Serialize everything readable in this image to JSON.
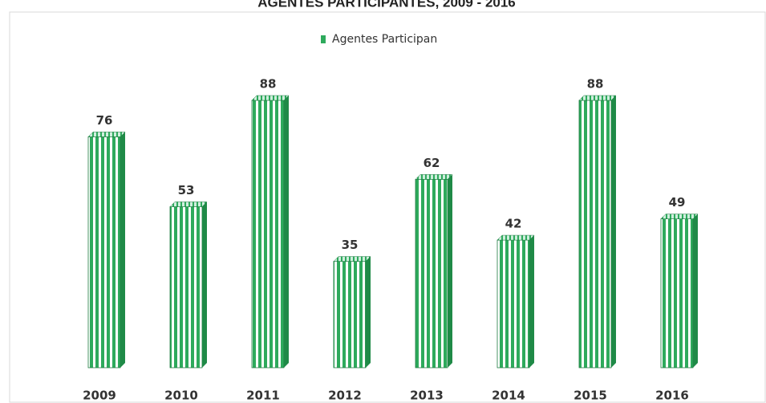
{
  "chart_data": {
    "type": "bar",
    "title": "AGENTES PARTICIPANTES, 2009 - 2016",
    "categories": [
      "2009",
      "2010",
      "2011",
      "2012",
      "2013",
      "2014",
      "2015",
      "2016"
    ],
    "series": [
      {
        "name": "Agentes Participan",
        "color": "#2eaa5c",
        "values": [
          76,
          53,
          88,
          35,
          62,
          42,
          88,
          49
        ]
      }
    ]
  }
}
